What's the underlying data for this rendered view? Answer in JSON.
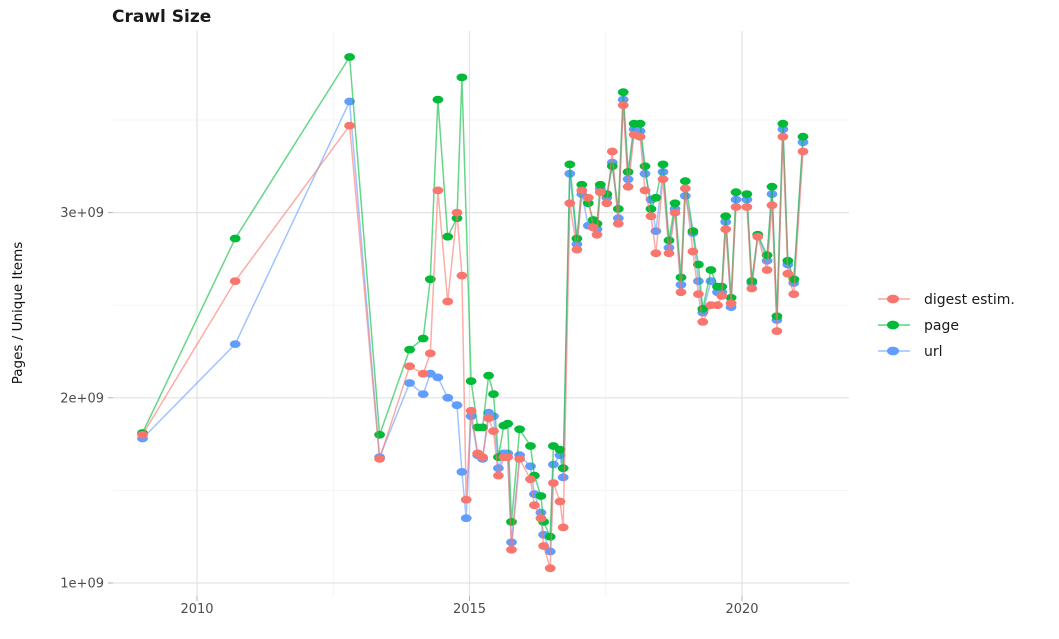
{
  "title": "Crawl Size",
  "axes": {
    "y_label": "Pages / Unique Items",
    "x_ticks": [
      "2010",
      "2015",
      "2020"
    ],
    "y_ticks": [
      "1e+09",
      "2e+09",
      "3e+09"
    ]
  },
  "legend": {
    "items": [
      {
        "label": "digest estim.",
        "series": "digest",
        "color": "#F8766D"
      },
      {
        "label": "page",
        "series": "page",
        "color": "#00BA38"
      },
      {
        "label": "url",
        "series": "url",
        "color": "#619CFF"
      }
    ]
  },
  "colors": {
    "digest": "#F8766D",
    "page": "#00BA38",
    "url": "#619CFF",
    "grid_major": "#e3e3e3",
    "grid_minor": "#f2f2f2",
    "background": "#ffffff"
  },
  "chart_data": {
    "type": "line",
    "title": "Crawl Size",
    "xlabel": "",
    "ylabel": "Pages / Unique Items",
    "value_unit": "1e9 (billions of pages / unique items)",
    "xlim": [
      2008.5,
      2021.9
    ],
    "ylim": [
      1000000000.0,
      3900000000.0
    ],
    "grid": true,
    "legend_position": "right",
    "x_grid_major_years": [
      2010,
      2015,
      2020
    ],
    "x_grid_minor_years": [
      2012.5,
      2017.5
    ],
    "y_grid_major_billions": [
      1,
      2,
      3
    ],
    "y_grid_minor_billions": [
      1.5,
      2.5,
      3.5
    ],
    "x": [
      2009.0,
      2010.7,
      2012.8,
      2013.35,
      2013.9,
      2014.15,
      2014.28,
      2014.42,
      2014.6,
      2014.77,
      2014.86,
      2014.94,
      2015.03,
      2015.15,
      2015.24,
      2015.35,
      2015.44,
      2015.53,
      2015.63,
      2015.7,
      2015.77,
      2015.92,
      2016.12,
      2016.19,
      2016.31,
      2016.36,
      2016.48,
      2016.54,
      2016.66,
      2016.72,
      2016.84,
      2016.97,
      2017.06,
      2017.18,
      2017.27,
      2017.34,
      2017.4,
      2017.52,
      2017.62,
      2017.73,
      2017.82,
      2017.91,
      2018.02,
      2018.13,
      2018.22,
      2018.33,
      2018.42,
      2018.55,
      2018.66,
      2018.77,
      2018.88,
      2018.96,
      2019.1,
      2019.2,
      2019.28,
      2019.43,
      2019.55,
      2019.63,
      2019.7,
      2019.8,
      2019.89,
      2020.09,
      2020.18,
      2020.29,
      2020.46,
      2020.55,
      2020.64,
      2020.75,
      2020.84,
      2020.95,
      2021.12
    ],
    "series": [
      {
        "name": "digest estim.",
        "key": "digest",
        "color": "#F8766D",
        "values_billions": [
          1.8,
          2.63,
          3.47,
          1.67,
          2.17,
          2.13,
          2.24,
          3.12,
          2.52,
          3.0,
          2.66,
          1.45,
          1.93,
          1.7,
          1.68,
          1.89,
          1.82,
          1.58,
          1.68,
          1.68,
          1.18,
          1.67,
          1.56,
          1.42,
          1.35,
          1.2,
          1.08,
          1.54,
          1.44,
          1.3,
          3.05,
          2.8,
          3.12,
          3.08,
          2.92,
          2.88,
          3.11,
          3.05,
          3.33,
          2.94,
          3.58,
          3.14,
          3.42,
          3.41,
          3.12,
          2.98,
          2.78,
          3.18,
          2.78,
          3.0,
          2.57,
          3.13,
          2.79,
          2.56,
          2.41,
          2.5,
          2.5,
          2.55,
          2.91,
          2.51,
          3.03,
          3.03,
          2.59,
          2.87,
          2.69,
          3.04,
          2.36,
          3.41,
          2.67,
          2.56,
          3.33
        ]
      },
      {
        "name": "page",
        "key": "page",
        "color": "#00BA38",
        "values_billions": [
          1.81,
          2.86,
          3.84,
          1.8,
          2.26,
          2.32,
          2.64,
          3.61,
          2.87,
          2.97,
          3.73,
          null,
          2.09,
          1.84,
          1.84,
          2.12,
          2.02,
          1.68,
          1.85,
          1.86,
          1.33,
          1.83,
          1.74,
          1.58,
          1.47,
          1.33,
          1.25,
          1.74,
          1.72,
          1.62,
          3.26,
          2.86,
          3.15,
          3.05,
          2.96,
          2.94,
          3.15,
          3.1,
          3.25,
          3.02,
          3.65,
          3.22,
          3.48,
          3.48,
          3.25,
          3.02,
          3.08,
          3.26,
          2.85,
          3.05,
          2.65,
          3.17,
          2.9,
          2.72,
          2.48,
          2.69,
          2.6,
          2.6,
          2.98,
          2.54,
          3.11,
          3.1,
          2.63,
          2.88,
          2.77,
          3.14,
          2.44,
          3.48,
          2.74,
          2.64,
          3.41
        ]
      },
      {
        "name": "url",
        "key": "url",
        "color": "#619CFF",
        "values_billions": [
          1.78,
          2.29,
          3.6,
          1.68,
          2.08,
          2.02,
          2.13,
          2.11,
          2.0,
          1.96,
          1.6,
          1.35,
          1.9,
          1.69,
          1.67,
          1.92,
          1.9,
          1.62,
          1.7,
          1.7,
          1.22,
          1.69,
          1.63,
          1.48,
          1.38,
          1.26,
          1.17,
          1.64,
          1.69,
          1.57,
          3.21,
          2.83,
          3.1,
          2.93,
          2.92,
          2.91,
          3.13,
          3.08,
          3.27,
          2.97,
          3.61,
          3.18,
          3.45,
          3.44,
          3.21,
          3.07,
          2.9,
          3.22,
          2.81,
          3.02,
          2.61,
          3.09,
          2.89,
          2.63,
          2.46,
          2.63,
          2.57,
          2.57,
          2.95,
          2.49,
          3.07,
          3.07,
          2.62,
          2.88,
          2.74,
          3.1,
          2.42,
          3.45,
          2.72,
          2.62,
          3.38
        ]
      }
    ]
  }
}
